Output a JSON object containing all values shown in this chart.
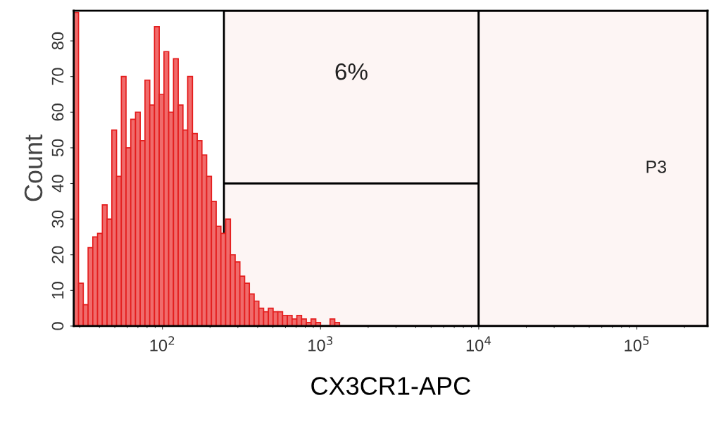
{
  "chart_data": {
    "type": "histogram",
    "xlabel": "CX3CR1-APC",
    "ylabel": "Count",
    "log": "x",
    "grid": false,
    "color": "#f06b6b",
    "bins": [
      27.5,
      29.5,
      31.6,
      33.9,
      36.3,
      38.9,
      41.7,
      44.7,
      47.9,
      51.3,
      55.0,
      58.9,
      63.1,
      67.6,
      72.4,
      77.6,
      83.2,
      89.1,
      95.5,
      102.3,
      109.6,
      117.5,
      125.9,
      134.9,
      144.5,
      154.9,
      166.0,
      177.8,
      190.5,
      204.2,
      218.8,
      234.4,
      251.2,
      269.2,
      288.4,
      309.0,
      331.1,
      354.8,
      380.2,
      407.4,
      436.5,
      467.7,
      501.2,
      537.0,
      575.4,
      616.6,
      660.7,
      707.9,
      758.6,
      812.8,
      871.0,
      933.3,
      1000,
      1071.5,
      1148.2,
      1230.3,
      1318.3
    ],
    "values": [
      88,
      12,
      6,
      22,
      25,
      26,
      34,
      30,
      55,
      42,
      70,
      50,
      58,
      60,
      52,
      69,
      62,
      84,
      65,
      77,
      60,
      75,
      62,
      55,
      70,
      54,
      52,
      48,
      42,
      35,
      28,
      26,
      30,
      20,
      18,
      14,
      12,
      9,
      7,
      5,
      4,
      5,
      4,
      4,
      3,
      3,
      2,
      3,
      2,
      1,
      2,
      1,
      0,
      0,
      2,
      1
    ],
    "xlim": [
      27.5,
      280000
    ],
    "ylim": [
      0,
      88.5
    ],
    "xticks": [
      {
        "value": 100,
        "label": "10$^{2}$"
      },
      {
        "value": 1000,
        "label": "10$^{3}$"
      },
      {
        "value": 10000,
        "label": "10$^{4}$"
      },
      {
        "value": 100000,
        "label": "10$^{5}$"
      }
    ],
    "yticks": [
      0,
      10,
      20,
      30,
      40,
      50,
      60,
      70,
      80
    ],
    "bands": [
      {
        "axis": "x",
        "from": 245,
        "to": 10000,
        "label": "6%",
        "color": "#fdf5f4"
      },
      {
        "axis": "x",
        "from": 10000,
        "to": 280000,
        "label": "P3",
        "color": "#fdf5f4"
      }
    ],
    "ref_lines": [
      {
        "axis": "y",
        "value": 40,
        "color": "#000000"
      }
    ]
  }
}
